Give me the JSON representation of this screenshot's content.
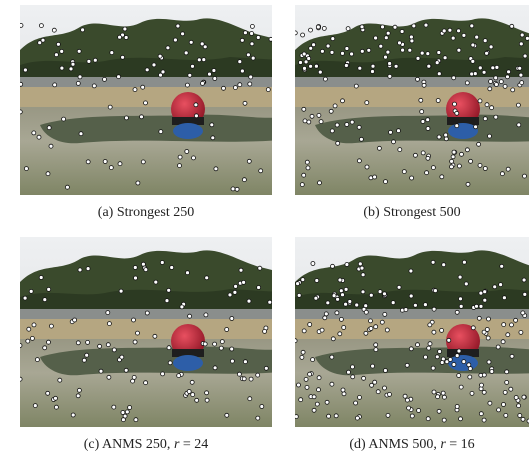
{
  "panels": [
    {
      "caption": [
        "(a) Strongest 250"
      ]
    },
    {
      "caption": [
        "(b) Strongest 500"
      ]
    },
    {
      "caption": [
        "(c) ANMS 250, ",
        "r",
        " = 24"
      ]
    },
    {
      "caption": [
        "(d) ANMS 500, ",
        "r",
        " = 16"
      ]
    }
  ]
}
